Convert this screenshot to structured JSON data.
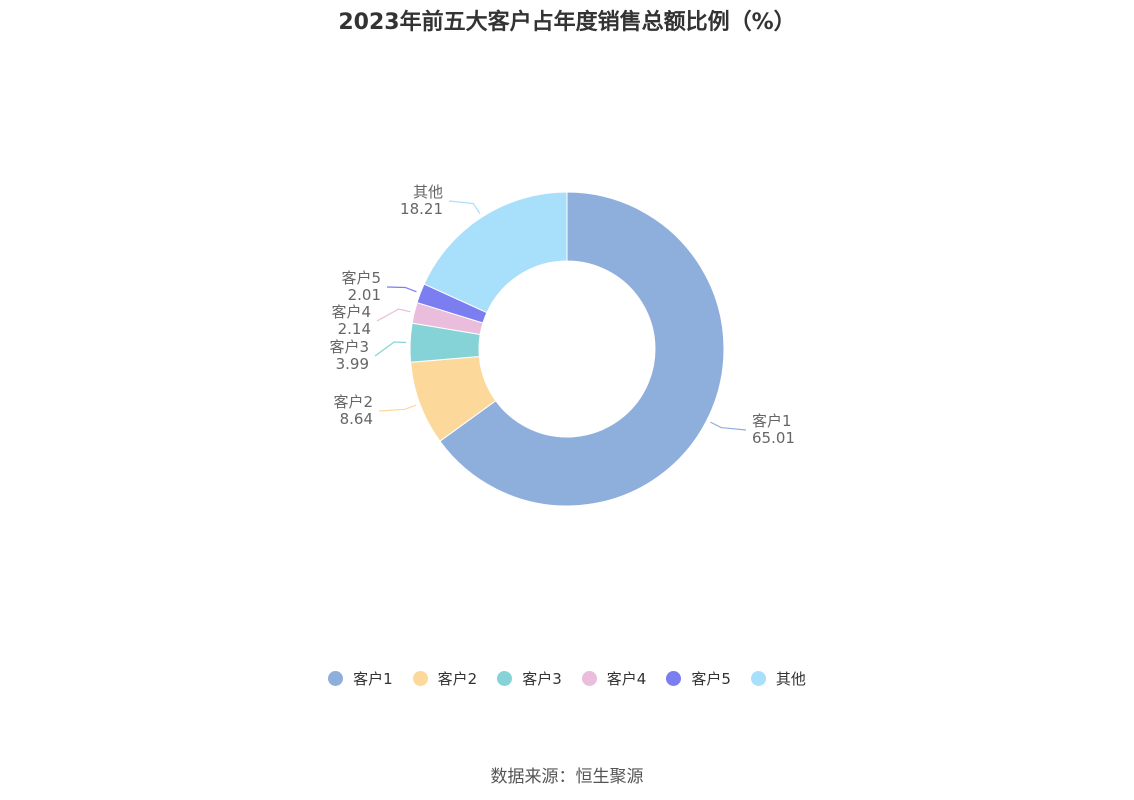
{
  "chart_data": {
    "type": "pie",
    "title": "2023年前五大客户占年度销售总额比例（%）",
    "categories": [
      "客户1",
      "客户2",
      "客户3",
      "客户4",
      "客户5",
      "其他"
    ],
    "values": [
      65.01,
      8.64,
      3.99,
      2.14,
      2.01,
      18.21
    ],
    "value_labels": [
      "65.01",
      "8.64",
      "3.99",
      "2.14",
      "2.01",
      "18.21"
    ],
    "colors": [
      "#8eaedc",
      "#fdd89b",
      "#85d3d7",
      "#e9bddb",
      "#7b7ef1",
      "#a8dffa"
    ],
    "style": "donut",
    "legend_position": "bottom"
  },
  "footer": {
    "source": "数据来源：恒生聚源"
  }
}
